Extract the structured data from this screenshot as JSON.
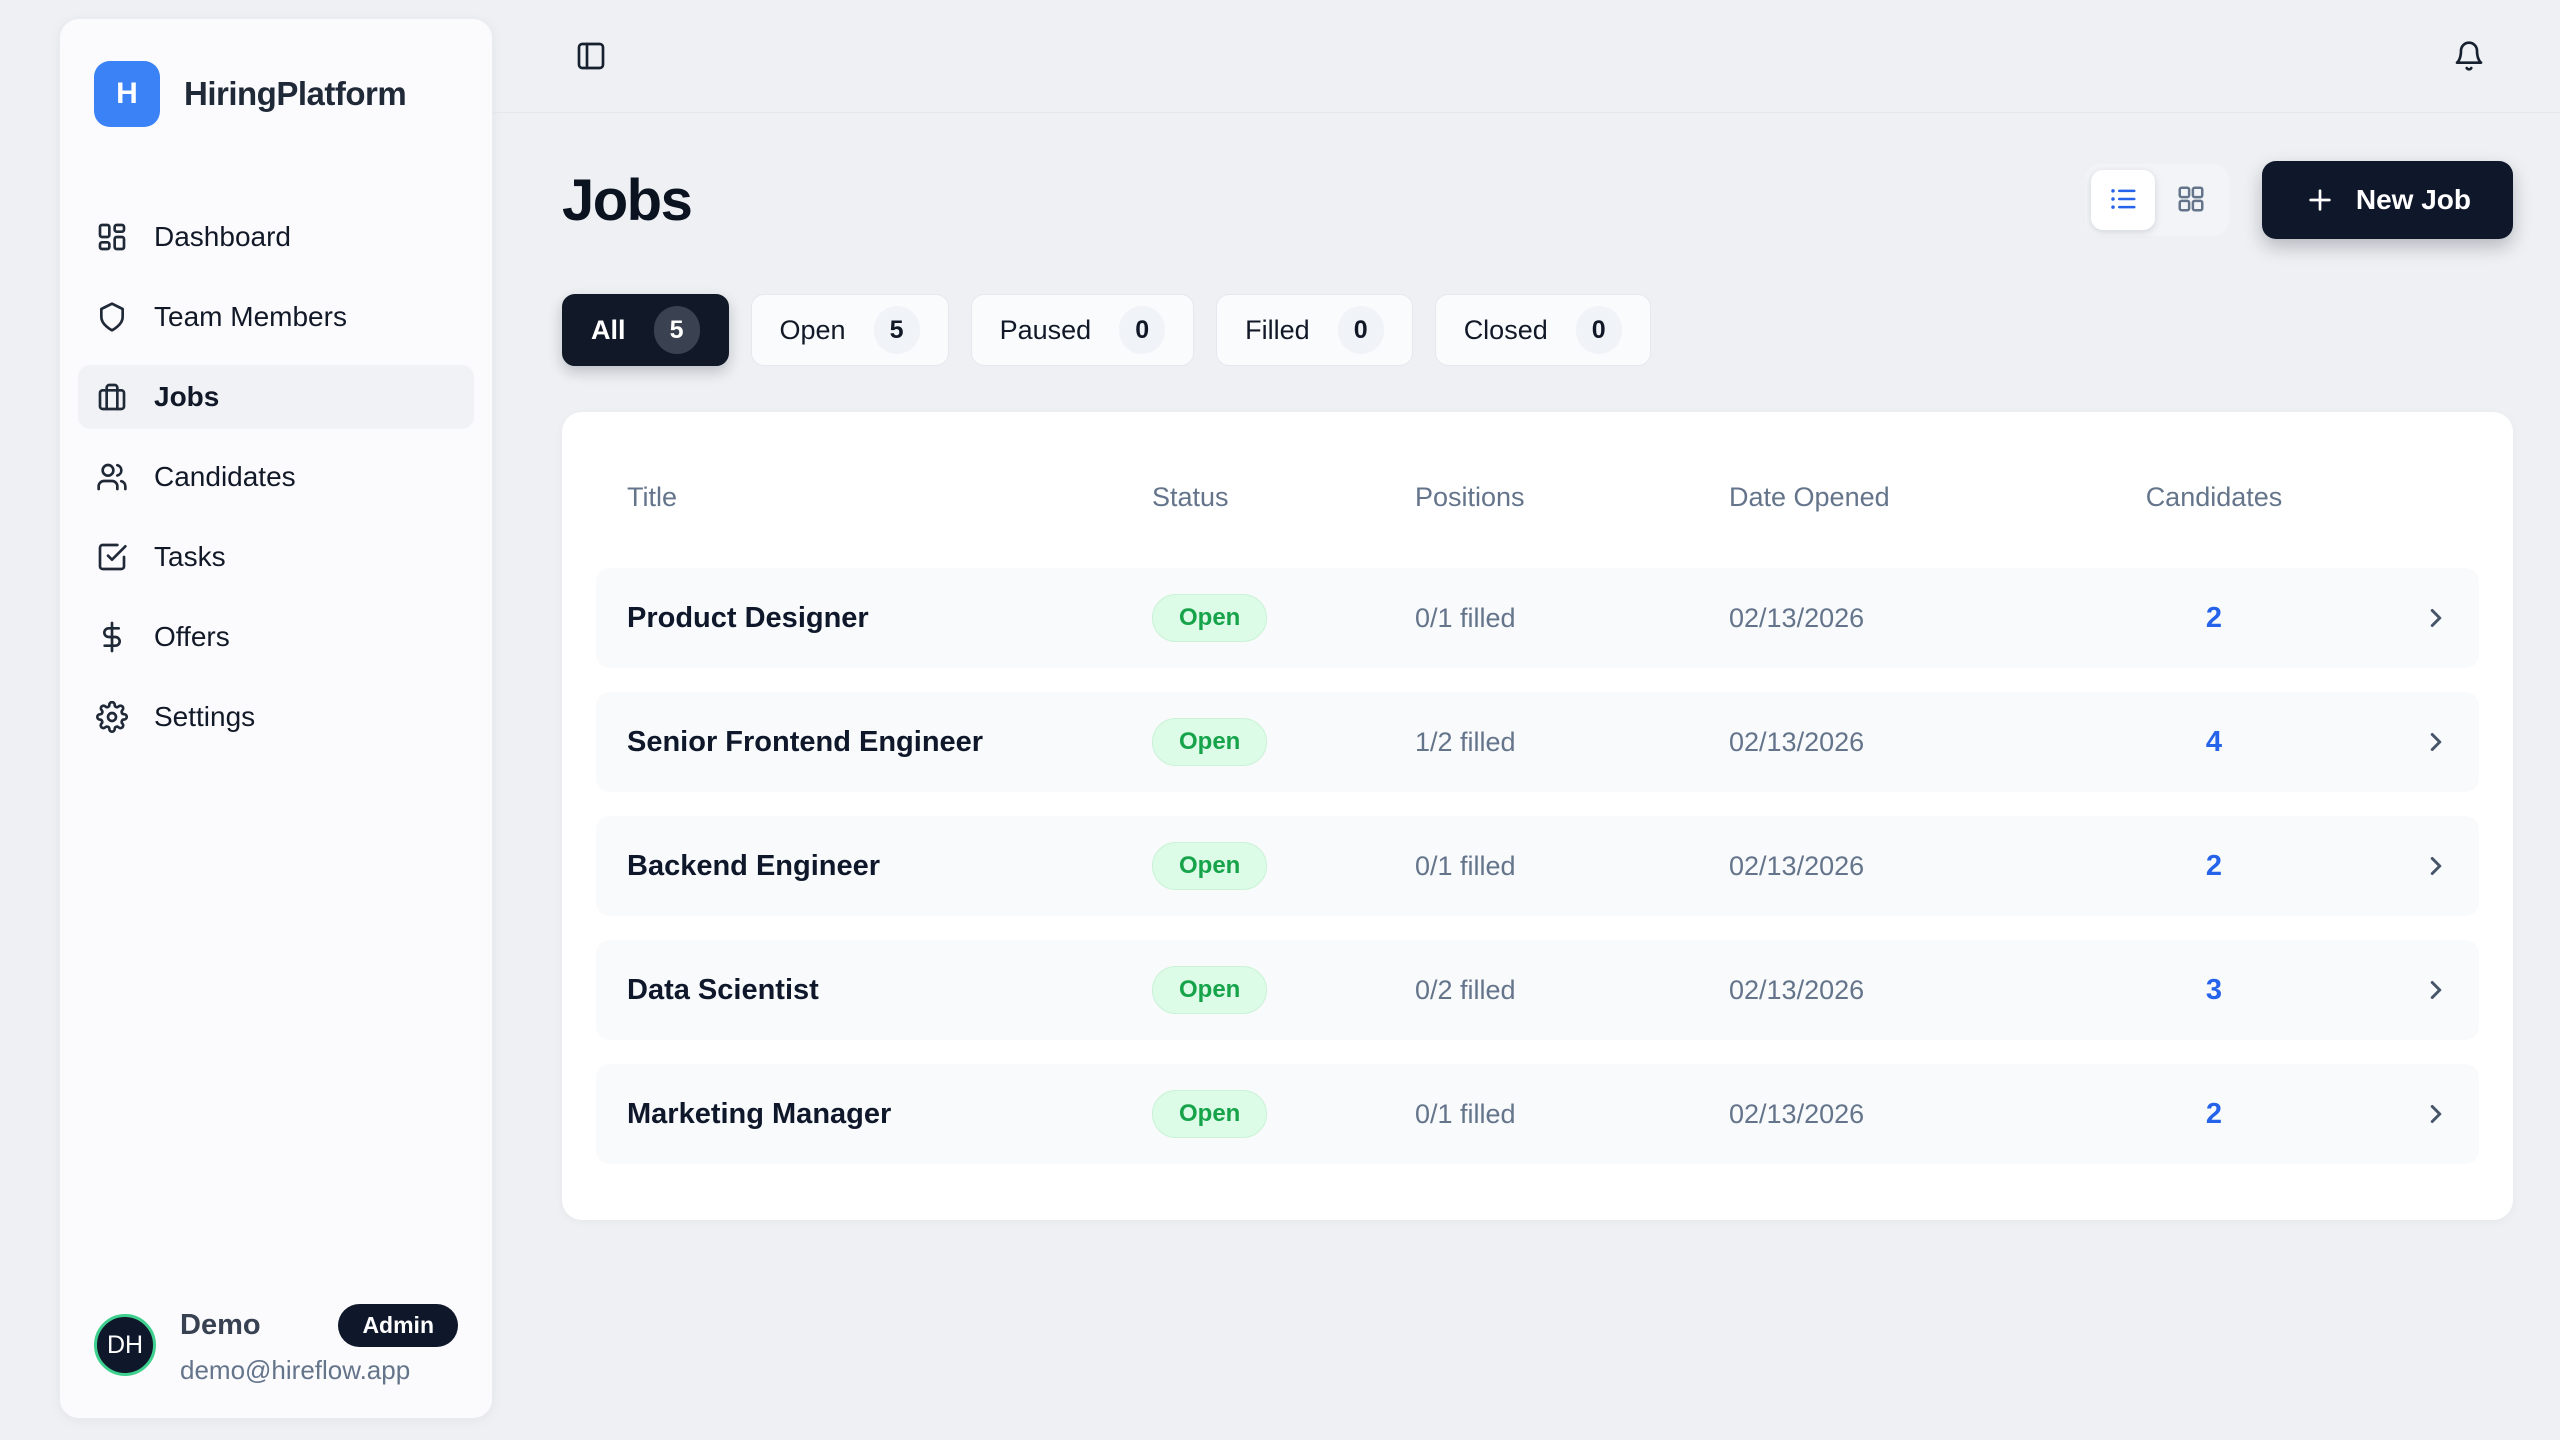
{
  "app": {
    "name": "HiringPlatform",
    "logo_letter": "H"
  },
  "topbar": {
    "icons": [
      "panel-left-icon",
      "bell-icon"
    ]
  },
  "sidebar": {
    "items": [
      {
        "id": "dashboard",
        "label": "Dashboard",
        "icon": "dashboard-icon",
        "active": false
      },
      {
        "id": "team-members",
        "label": "Team Members",
        "icon": "shield-icon",
        "active": false
      },
      {
        "id": "jobs",
        "label": "Jobs",
        "icon": "briefcase-icon",
        "active": true
      },
      {
        "id": "candidates",
        "label": "Candidates",
        "icon": "users-icon",
        "active": false
      },
      {
        "id": "tasks",
        "label": "Tasks",
        "icon": "check-square-icon",
        "active": false
      },
      {
        "id": "offers",
        "label": "Offers",
        "icon": "dollar-icon",
        "active": false
      },
      {
        "id": "settings",
        "label": "Settings",
        "icon": "gear-icon",
        "active": false
      }
    ],
    "user": {
      "initials": "DH",
      "name": "Demo",
      "role": "Admin",
      "email": "demo@hireflow.app"
    }
  },
  "page": {
    "title": "Jobs"
  },
  "toolbar": {
    "view_modes": [
      "list",
      "grid"
    ],
    "active_view": "list",
    "new_job_label": "New Job"
  },
  "filters": [
    {
      "label": "All",
      "count": "5",
      "active": true
    },
    {
      "label": "Open",
      "count": "5",
      "active": false
    },
    {
      "label": "Paused",
      "count": "0",
      "active": false
    },
    {
      "label": "Filled",
      "count": "0",
      "active": false
    },
    {
      "label": "Closed",
      "count": "0",
      "active": false
    }
  ],
  "table": {
    "columns": [
      "Title",
      "Status",
      "Positions",
      "Date Opened",
      "Candidates"
    ],
    "rows": [
      {
        "title": "Product Designer",
        "status": "Open",
        "positions": "0/1 filled",
        "date_opened": "02/13/2026",
        "candidates": "2"
      },
      {
        "title": "Senior Frontend Engineer",
        "status": "Open",
        "positions": "1/2 filled",
        "date_opened": "02/13/2026",
        "candidates": "4"
      },
      {
        "title": "Backend Engineer",
        "status": "Open",
        "positions": "0/1 filled",
        "date_opened": "02/13/2026",
        "candidates": "2"
      },
      {
        "title": "Data Scientist",
        "status": "Open",
        "positions": "0/2 filled",
        "date_opened": "02/13/2026",
        "candidates": "3"
      },
      {
        "title": "Marketing Manager",
        "status": "Open",
        "positions": "0/1 filled",
        "date_opened": "02/13/2026",
        "candidates": "2"
      }
    ]
  },
  "colors": {
    "accent_blue": "#3b82f6",
    "dark_navy": "#0f172a",
    "open_badge_bg": "#dcfce7",
    "open_badge_text": "#16a34a",
    "candidate_count_blue": "#2563eb",
    "avatar_ring_green": "#3fd08f",
    "page_background": "#eef0f3",
    "row_background": "#f8fafc"
  }
}
